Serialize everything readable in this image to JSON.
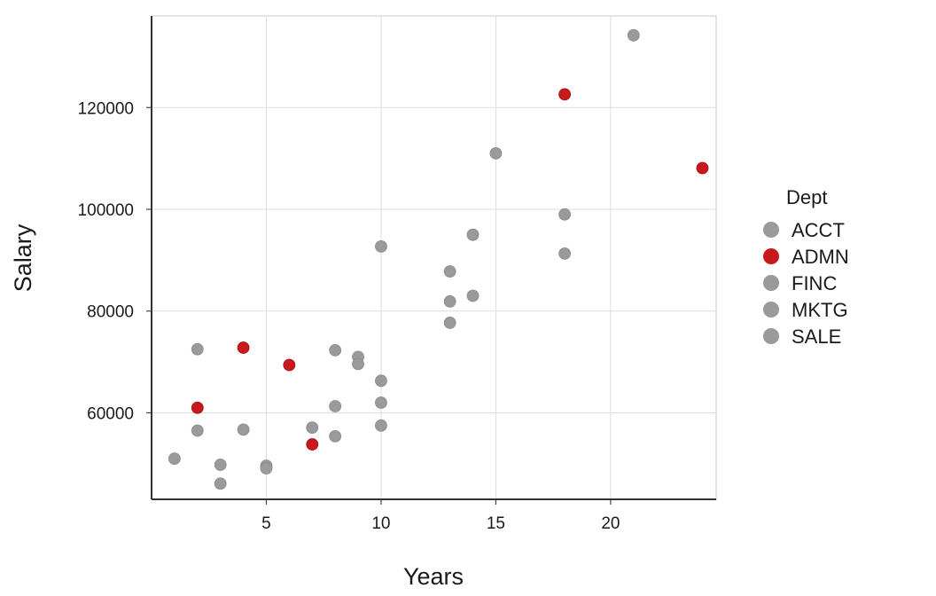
{
  "chart_data": {
    "type": "scatter",
    "title": "",
    "xlabel": "Years",
    "ylabel": "Salary",
    "xlim": [
      0,
      24.6
    ],
    "ylim": [
      43000,
      138000
    ],
    "x_ticks": [
      5,
      10,
      15,
      20
    ],
    "y_ticks": [
      60000,
      80000,
      100000,
      120000
    ],
    "grid": true,
    "legend": {
      "title": "Dept",
      "position": "right",
      "entries": [
        {
          "label": "ACCT",
          "color": "#9a9a9a"
        },
        {
          "label": "ADMN",
          "color": "#c8191c"
        },
        {
          "label": "FINC",
          "color": "#9a9a9a"
        },
        {
          "label": "MKTG",
          "color": "#9a9a9a"
        },
        {
          "label": "SALE",
          "color": "#9a9a9a"
        }
      ]
    },
    "colors": {
      "default": "#9a9a9a",
      "highlight": "#c8191c"
    },
    "points": [
      {
        "x": 21,
        "y": 134200,
        "group": "other"
      },
      {
        "x": 15,
        "y": 111000,
        "group": "other"
      },
      {
        "x": 18,
        "y": 99000,
        "group": "other"
      },
      {
        "x": 18,
        "y": 91300,
        "group": "other"
      },
      {
        "x": 14,
        "y": 95000,
        "group": "other"
      },
      {
        "x": 10,
        "y": 92700,
        "group": "other"
      },
      {
        "x": 13,
        "y": 87800,
        "group": "other"
      },
      {
        "x": 13,
        "y": 81900,
        "group": "other"
      },
      {
        "x": 14,
        "y": 83000,
        "group": "other"
      },
      {
        "x": 13,
        "y": 77700,
        "group": "other"
      },
      {
        "x": 2,
        "y": 72500,
        "group": "other"
      },
      {
        "x": 8,
        "y": 72300,
        "group": "other"
      },
      {
        "x": 9,
        "y": 71000,
        "group": "other"
      },
      {
        "x": 9,
        "y": 69600,
        "group": "other"
      },
      {
        "x": 10,
        "y": 66300,
        "group": "other"
      },
      {
        "x": 10,
        "y": 62000,
        "group": "other"
      },
      {
        "x": 8,
        "y": 61300,
        "group": "other"
      },
      {
        "x": 10,
        "y": 57500,
        "group": "other"
      },
      {
        "x": 7,
        "y": 57100,
        "group": "other"
      },
      {
        "x": 4,
        "y": 56700,
        "group": "other"
      },
      {
        "x": 2,
        "y": 56500,
        "group": "other"
      },
      {
        "x": 8,
        "y": 55400,
        "group": "other"
      },
      {
        "x": 1,
        "y": 51000,
        "group": "other"
      },
      {
        "x": 3,
        "y": 49800,
        "group": "other"
      },
      {
        "x": 5,
        "y": 49600,
        "group": "other"
      },
      {
        "x": 5,
        "y": 49100,
        "group": "other"
      },
      {
        "x": 3,
        "y": 46100,
        "group": "other"
      },
      {
        "x": 18,
        "y": 122600,
        "group": "ADMN"
      },
      {
        "x": 24,
        "y": 108100,
        "group": "ADMN"
      },
      {
        "x": 4,
        "y": 72800,
        "group": "ADMN"
      },
      {
        "x": 6,
        "y": 69400,
        "group": "ADMN"
      },
      {
        "x": 2,
        "y": 61000,
        "group": "ADMN"
      },
      {
        "x": 7,
        "y": 53800,
        "group": "ADMN"
      }
    ]
  }
}
